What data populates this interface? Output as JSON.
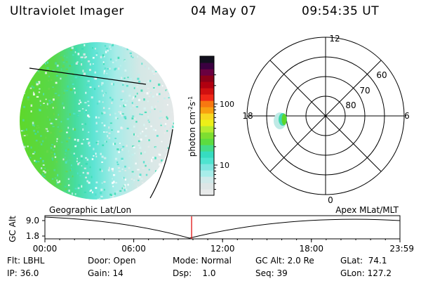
{
  "header": {
    "title": "Ultraviolet Imager",
    "date": "04 May 07",
    "time": "09:54:35 UT"
  },
  "colorbar": {
    "label": "photon cm",
    "label_exp1": "-2",
    "label_s": "s",
    "label_exp2": "-1",
    "ticks": [
      {
        "label": "100",
        "value": 100
      },
      {
        "label": "10",
        "value": 10
      }
    ],
    "colors": [
      "#e8eaea",
      "#dde6e6",
      "#cfeaea",
      "#a8eeea",
      "#7fe6e0",
      "#4fe4d0",
      "#36dcc0",
      "#44dc88",
      "#5cdc40",
      "#7ede30",
      "#b4ec30",
      "#ecf018",
      "#f8d820",
      "#f8a010",
      "#f87810",
      "#f02818",
      "#d01010",
      "#b00010",
      "#8c0018",
      "#6a0040",
      "#3a0040",
      "#12101e"
    ]
  },
  "polar": {
    "mlt_labels": [
      "12",
      "18",
      "6",
      "0"
    ],
    "lat_labels": [
      "60",
      "70",
      "80"
    ]
  },
  "timeline": {
    "ylabel": "GC Alt",
    "y_ticks": [
      "9.0",
      "1.8"
    ],
    "left_label": "Geographic Lat/Lon",
    "right_label": "Apex MLat/MLT",
    "x_ticks": [
      "00:00",
      "06:00",
      "12:00",
      "18:00",
      "23:59"
    ],
    "current_time": "09:54:35",
    "marker_color": "#e01010"
  },
  "info": {
    "row1": [
      {
        "label": "Flt:",
        "value": "LBHL"
      },
      {
        "label": "Door:",
        "value": "Open"
      },
      {
        "label": "Mode:",
        "value": "Normal"
      },
      {
        "label": "GC Alt:",
        "value": "2.0 Re"
      },
      {
        "label": "GLat:",
        "value": "74.1"
      }
    ],
    "row2": [
      {
        "label": "IP:",
        "value": "36.0"
      },
      {
        "label": "Gain:",
        "value": "14"
      },
      {
        "label": "Dsp:",
        "value": "1.0"
      },
      {
        "label": "Seq:",
        "value": "39"
      },
      {
        "label": "GLon:",
        "value": "127.2"
      }
    ]
  }
}
